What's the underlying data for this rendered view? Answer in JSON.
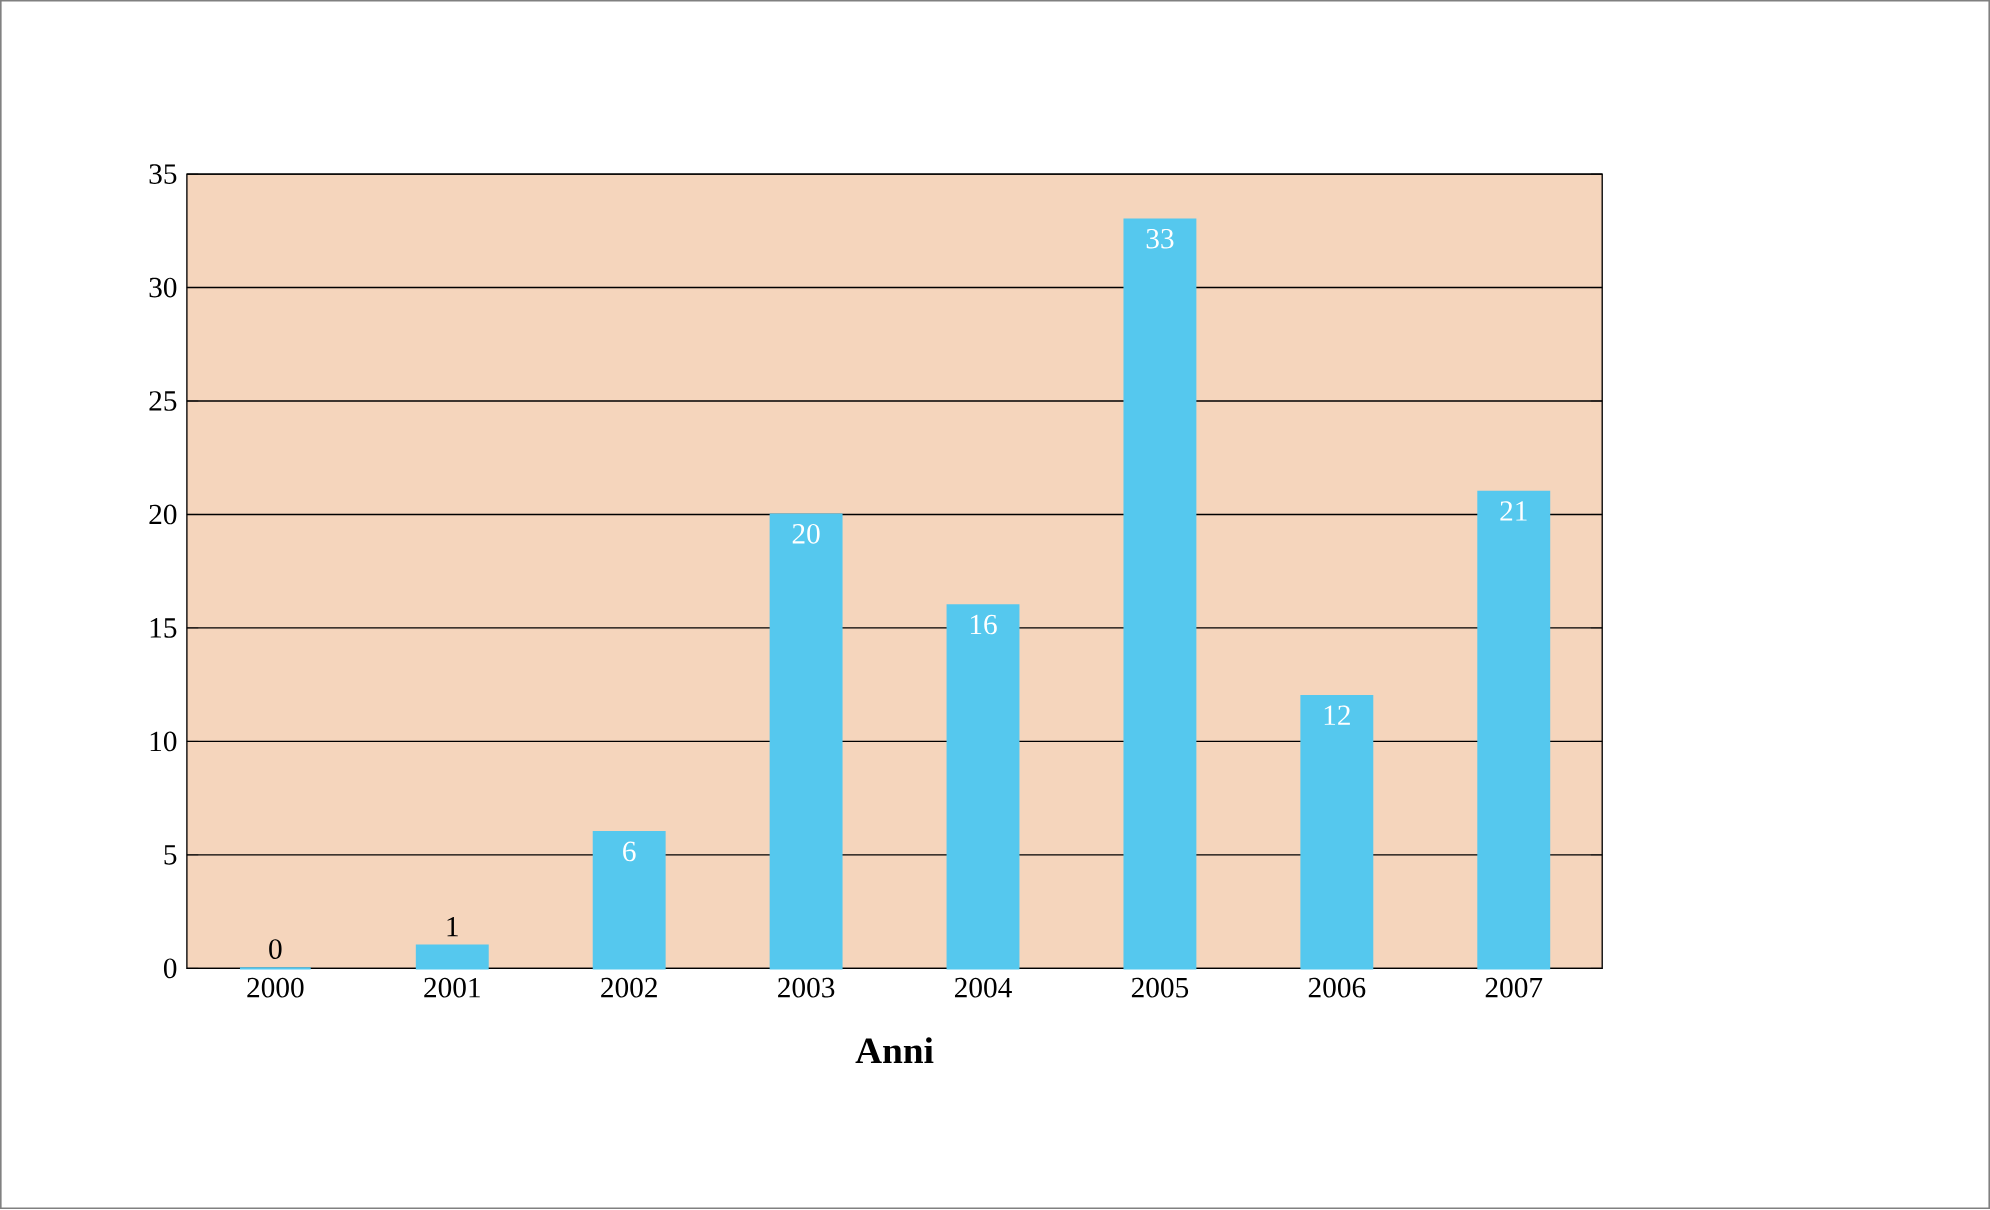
{
  "chart_data": {
    "type": "bar",
    "xlabel": "Anni",
    "categories": [
      "2000",
      "2001",
      "2002",
      "2003",
      "2004",
      "2005",
      "2006",
      "2007"
    ],
    "values": [
      0,
      1,
      6,
      20,
      16,
      33,
      12,
      21
    ],
    "color": "#55c8ee",
    "ylim": [
      0,
      35
    ],
    "yticks": [
      0,
      5,
      10,
      15,
      20,
      25,
      30,
      35
    ],
    "grid": "y",
    "data_labels": true
  }
}
